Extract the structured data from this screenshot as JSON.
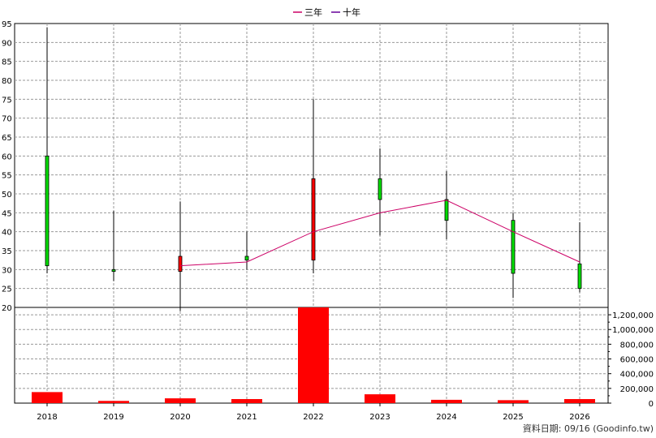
{
  "legend": {
    "items": [
      {
        "label": "三年",
        "color": "#cc0066"
      },
      {
        "label": "十年",
        "color": "#660099"
      }
    ]
  },
  "footer": {
    "text": "資料日期: 09/16  (Goodinfo.tw)"
  },
  "colors": {
    "up": "#ff0000",
    "down": "#00dd00",
    "volume": "#ff0000",
    "ma3": "#cc0066",
    "grid": "#999999"
  },
  "chart_data": [
    {
      "type": "candlestick",
      "title": "",
      "categories": [
        "2018",
        "2019",
        "2020",
        "2021",
        "2022",
        "2023",
        "2024",
        "2025",
        "2026"
      ],
      "ylim": [
        20,
        95
      ],
      "yticks": [
        20,
        25,
        30,
        35,
        40,
        45,
        50,
        55,
        60,
        65,
        70,
        75,
        80,
        85,
        90,
        95
      ],
      "candles": [
        {
          "x": "2018",
          "open": 60,
          "close": 31,
          "high": 94,
          "low": 29
        },
        {
          "x": "2019",
          "open": 30,
          "close": 29.5,
          "high": 45.5,
          "low": 27
        },
        {
          "x": "2020",
          "open": 29.5,
          "close": 33.5,
          "high": 48,
          "low": 19
        },
        {
          "x": "2021",
          "open": 33.5,
          "close": 32.5,
          "high": 40,
          "low": 30
        },
        {
          "x": "2022",
          "open": 32.5,
          "close": 54,
          "high": 75,
          "low": 29
        },
        {
          "x": "2023",
          "open": 54,
          "close": 48.5,
          "high": 62,
          "low": 39
        },
        {
          "x": "2024",
          "open": 48.5,
          "close": 43,
          "high": 56,
          "low": 38
        },
        {
          "x": "2025",
          "open": 43,
          "close": 29,
          "high": 45,
          "low": 22.5
        },
        {
          "x": "2026",
          "open": 31.5,
          "close": 25,
          "high": 42.5,
          "low": 24
        }
      ],
      "series": [
        {
          "name": "三年",
          "x": [
            "2020",
            "2021",
            "2022",
            "2023",
            "2024",
            "2025",
            "2026"
          ],
          "values": [
            31,
            32,
            40,
            45,
            48.3,
            40,
            32
          ]
        }
      ]
    },
    {
      "type": "bar",
      "categories": [
        "2018",
        "2019",
        "2020",
        "2021",
        "2022",
        "2023",
        "2024",
        "2025",
        "2026"
      ],
      "values": [
        150000,
        30000,
        65000,
        55000,
        1300000,
        120000,
        45000,
        40000,
        55000
      ],
      "ylim": [
        0,
        1300000
      ],
      "yticks": [
        0,
        200000,
        400000,
        600000,
        800000,
        1000000,
        1200000
      ],
      "ytick_labels": [
        "0",
        "200,000",
        "400,000",
        "600,000",
        "800,000",
        "1,000,000",
        "1,200,000"
      ]
    }
  ]
}
